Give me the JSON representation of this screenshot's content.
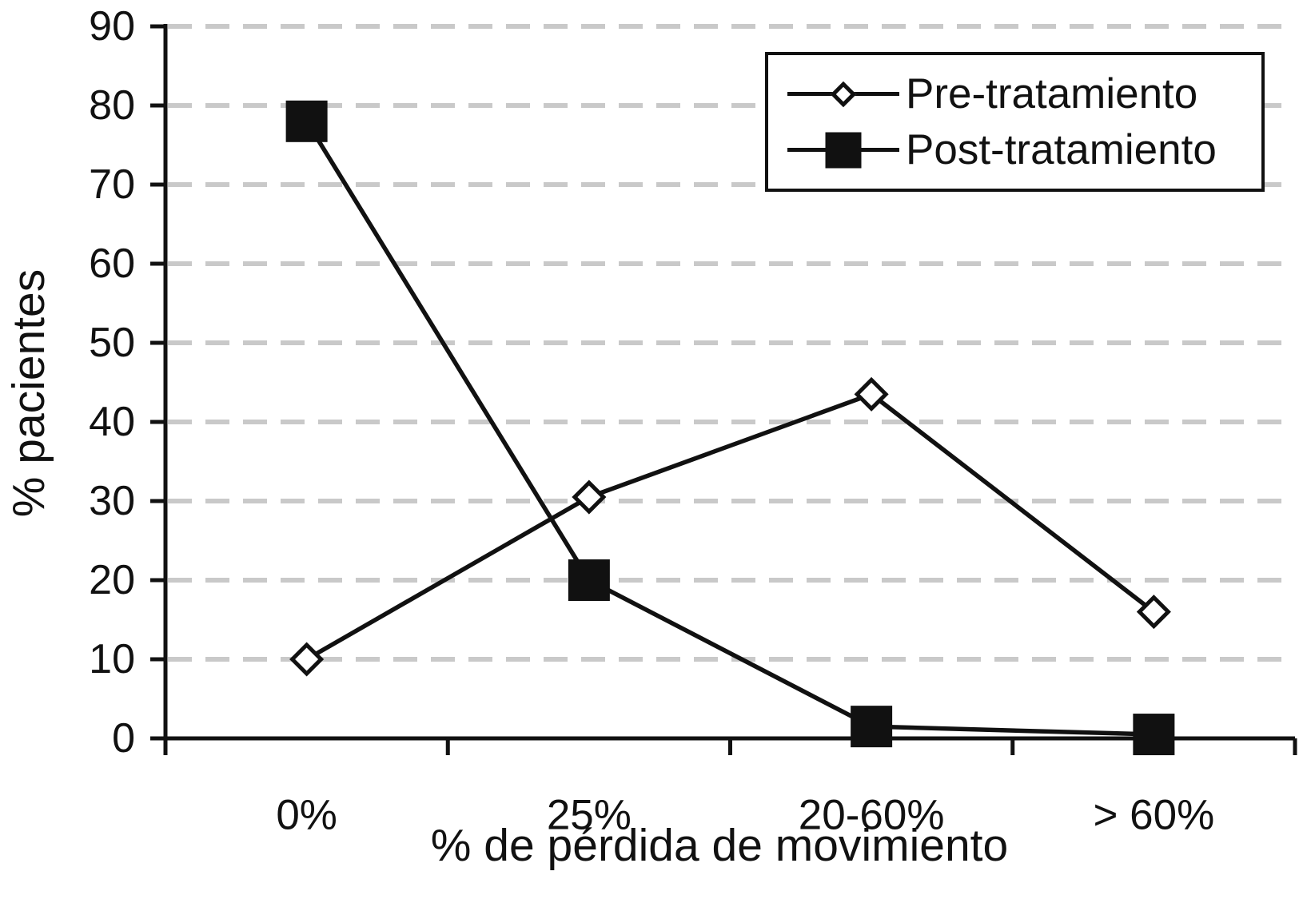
{
  "chart_data": {
    "type": "line",
    "title": "",
    "xlabel": "% de pérdida de movimiento",
    "ylabel": "% pacientes",
    "categories": [
      "0%",
      "25%",
      "20-60%",
      "> 60%"
    ],
    "series": [
      {
        "name": "Pre-tratamiento",
        "marker": "diamond",
        "marker_fill": "#ffffff",
        "values": [
          10,
          30.5,
          43.5,
          16
        ]
      },
      {
        "name": "Post-tratamiento",
        "marker": "square",
        "marker_fill": "#111111",
        "values": [
          78,
          20,
          1.5,
          0.5
        ]
      }
    ],
    "y_ticks": [
      0,
      10,
      20,
      30,
      40,
      50,
      60,
      70,
      80,
      90
    ],
    "ylim": [
      0,
      90
    ],
    "grid": "horizontal-dashed",
    "legend_position": "top-right",
    "colors": {
      "line": "#111111",
      "grid": "#c9c9c9",
      "background": "#ffffff"
    }
  }
}
